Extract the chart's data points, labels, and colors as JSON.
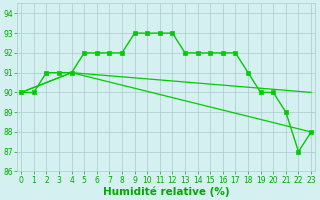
{
  "lines": [
    {
      "x": [
        0,
        1,
        2,
        3,
        4,
        5,
        6,
        7,
        8,
        9,
        10,
        11,
        12,
        13,
        14,
        15,
        16,
        17,
        18,
        19,
        20,
        21,
        22,
        23
      ],
      "y": [
        90,
        90,
        91,
        91,
        91,
        92,
        92,
        92,
        92,
        93,
        93,
        93,
        93,
        92,
        92,
        92,
        92,
        92,
        91,
        90,
        90,
        89,
        87,
        88
      ],
      "color": "#00cc00",
      "marker": "s",
      "markersize": 2.5,
      "linewidth": 1.0,
      "has_marker": true
    },
    {
      "x": [
        0,
        4,
        23
      ],
      "y": [
        90,
        91,
        90
      ],
      "color": "#00cc00",
      "marker": null,
      "markersize": 0,
      "linewidth": 0.9,
      "has_marker": false
    },
    {
      "x": [
        0,
        4,
        23
      ],
      "y": [
        90,
        91,
        88
      ],
      "color": "#00cc00",
      "marker": null,
      "markersize": 0,
      "linewidth": 0.9,
      "has_marker": false
    }
  ],
  "xlim": [
    -0.3,
    23.3
  ],
  "ylim": [
    86,
    94.5
  ],
  "yticks": [
    86,
    87,
    88,
    89,
    90,
    91,
    92,
    93,
    94
  ],
  "xticks": [
    0,
    1,
    2,
    3,
    4,
    5,
    6,
    7,
    8,
    9,
    10,
    11,
    12,
    13,
    14,
    15,
    16,
    17,
    18,
    19,
    20,
    21,
    22,
    23
  ],
  "xlabel": "Humidité relative (%)",
  "xlabel_color": "#00aa00",
  "background_color": "#d5f0f0",
  "grid_color": "#aacccc",
  "tick_color": "#00aa00",
  "tick_fontsize": 5.5,
  "xlabel_fontsize": 7.5,
  "xlabel_fontweight": "bold",
  "figwidth": 3.2,
  "figheight": 2.0,
  "dpi": 100
}
